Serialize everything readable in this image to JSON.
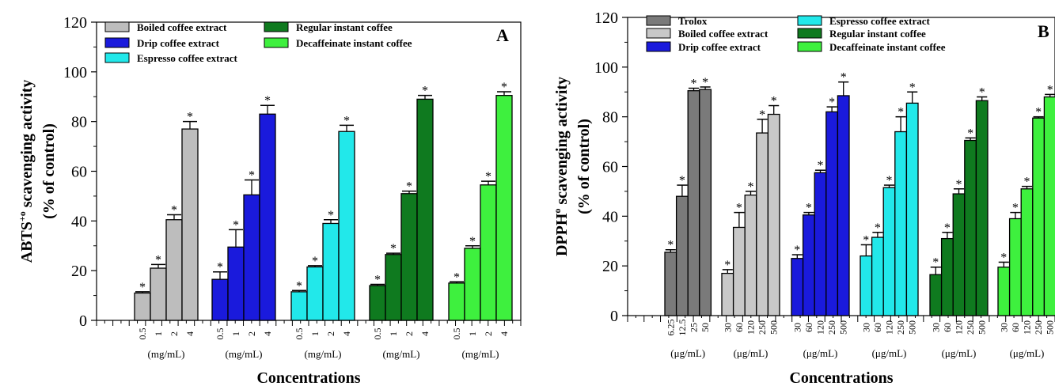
{
  "chart_data": [
    {
      "type": "bar",
      "panel_label": "A",
      "ylabel_main": "ABTS",
      "ylabel_sup": "+o",
      "ylabel_rest": " scavenging activity",
      "ylabel_line2": "(% of control)",
      "xlabel": "Concentrations",
      "ylim": [
        0,
        120
      ],
      "yticks": [
        "0",
        "20",
        "40",
        "60",
        "80",
        "100",
        "120"
      ],
      "significance_mark": "*",
      "groups": [
        {
          "name": "Boiled coffee extract",
          "color": "#bdbdbd",
          "unit": "(mg/mL)",
          "x": [
            "0.5",
            "1",
            "2",
            "4"
          ],
          "values": [
            11,
            21,
            40.5,
            77
          ],
          "errors": [
            0.5,
            1.5,
            2,
            3
          ]
        },
        {
          "name": "Drip coffee extract",
          "color": "#1a1adc",
          "unit": "(mg/mL)",
          "x": [
            "0.5",
            "1",
            "2",
            "4"
          ],
          "values": [
            16.5,
            29.5,
            50.5,
            83
          ],
          "errors": [
            3,
            7,
            6,
            3.5
          ]
        },
        {
          "name": "Espresso coffee extract",
          "color": "#22e8ea",
          "unit": "(mg/mL)",
          "x": [
            "0.5",
            "1",
            "2",
            "4"
          ],
          "values": [
            11.5,
            21.5,
            39,
            76
          ],
          "errors": [
            0.5,
            0.5,
            1.5,
            2.5
          ]
        },
        {
          "name": "Regular instant coffee",
          "color": "#0f7a1f",
          "unit": "(mg/mL)",
          "x": [
            "0.5",
            "1",
            "2",
            "4"
          ],
          "values": [
            14,
            26.5,
            51,
            89
          ],
          "errors": [
            0.5,
            0.5,
            1,
            1.5
          ]
        },
        {
          "name": "Decaffeinate instant coffee",
          "color": "#3ef03e",
          "unit": "(mg/mL)",
          "x": [
            "0.5",
            "1",
            "2",
            "4"
          ],
          "values": [
            15,
            29,
            54.5,
            90.5
          ],
          "errors": [
            0.5,
            1,
            1.5,
            1.5
          ]
        }
      ]
    },
    {
      "type": "bar",
      "panel_label": "B",
      "ylabel_main": "DPPH",
      "ylabel_sup": "o",
      "ylabel_rest": " scavenging activity",
      "ylabel_line2": "(% of control)",
      "xlabel": "Concentrations",
      "ylim": [
        0,
        120
      ],
      "yticks": [
        "0",
        "20",
        "40",
        "60",
        "80",
        "100",
        "120"
      ],
      "significance_mark": "*",
      "groups": [
        {
          "name": "Trolox",
          "color": "#7a7a7a",
          "unit": "(μg/mL)",
          "x": [
            "6.25",
            "12.5",
            "25",
            "50"
          ],
          "values": [
            25.5,
            48,
            90.5,
            91
          ],
          "errors": [
            1,
            4.5,
            1,
            1
          ]
        },
        {
          "name": "Boiled coffee extract",
          "color": "#c8c8c8",
          "unit": "(μg/mL)",
          "x": [
            "30",
            "60",
            "120",
            "250",
            "500"
          ],
          "values": [
            17,
            35.5,
            48.5,
            73.5,
            81
          ],
          "errors": [
            1.5,
            6,
            1.5,
            5.5,
            3.5
          ]
        },
        {
          "name": "Drip coffee extract",
          "color": "#1a1adc",
          "unit": "(μg/mL)",
          "x": [
            "30",
            "60",
            "120",
            "250",
            "500"
          ],
          "values": [
            23,
            40.5,
            57.5,
            82,
            88.5
          ],
          "errors": [
            1.5,
            1,
            1,
            2,
            5.5
          ]
        },
        {
          "name": "Espresso coffee extract",
          "color": "#22e8ea",
          "unit": "(μg/mL)",
          "x": [
            "30",
            "60",
            "120",
            "250",
            "500"
          ],
          "values": [
            24,
            31.5,
            51.5,
            74,
            85.5
          ],
          "errors": [
            4.5,
            2,
            1,
            6,
            4.5
          ]
        },
        {
          "name": "Regular instant coffee",
          "color": "#0f7a1f",
          "unit": "(μg/mL)",
          "x": [
            "30",
            "60",
            "120",
            "250",
            "500"
          ],
          "values": [
            16.5,
            31,
            49,
            70.5,
            86.5
          ],
          "errors": [
            3,
            2.5,
            2,
            1,
            1.5
          ]
        },
        {
          "name": "Decaffeinate instant coffee",
          "color": "#3ef03e",
          "unit": "(μg/mL)",
          "x": [
            "30",
            "60",
            "120",
            "250",
            "500"
          ],
          "values": [
            19.5,
            39,
            51,
            79.5,
            88
          ],
          "errors": [
            2,
            2.5,
            1,
            0.5,
            1
          ]
        }
      ]
    }
  ]
}
